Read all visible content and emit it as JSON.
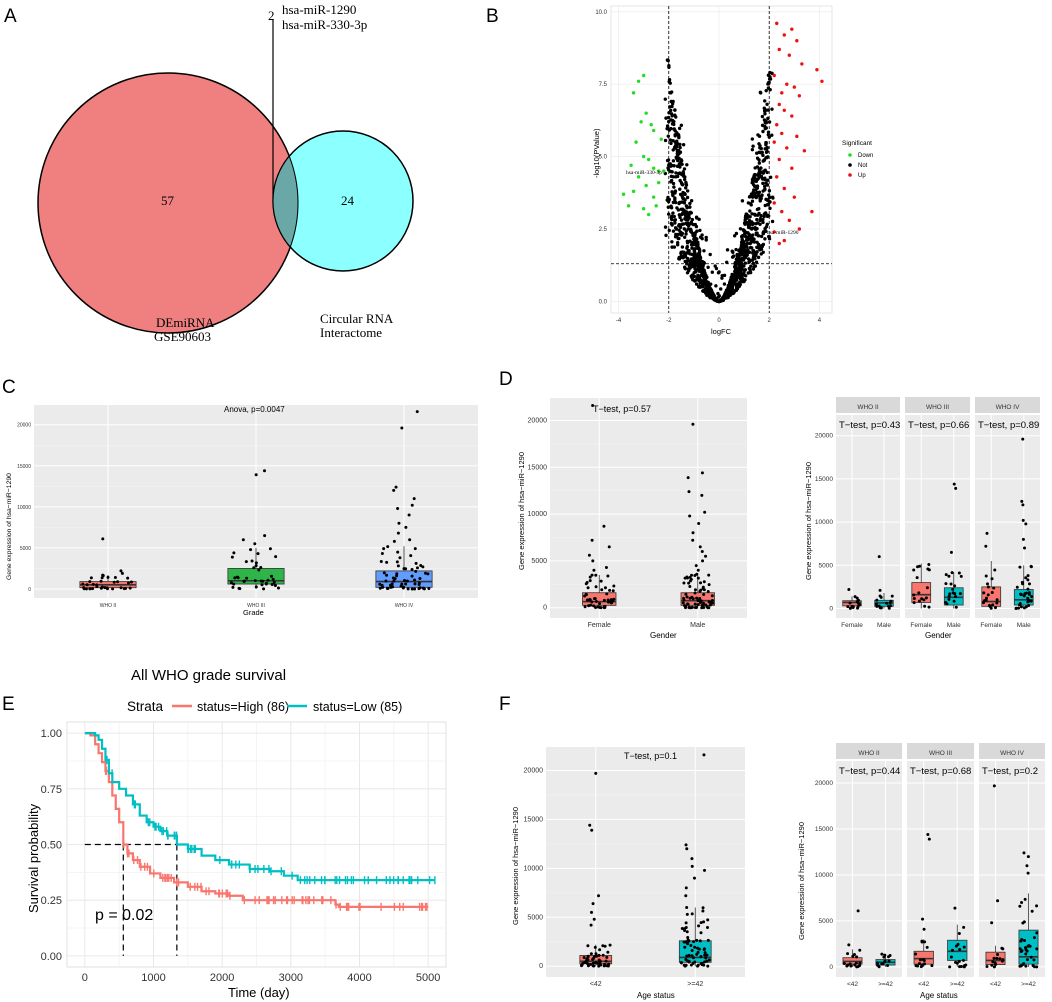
{
  "colors": {
    "venn_left": "#F08080",
    "venn_right": "#7FFFFF",
    "down": "#22DD22",
    "not": "#000000",
    "up": "#EE1111",
    "box_red": "#F8766D",
    "box_green": "#2FB44A",
    "box_blue": "#619CFF",
    "box_teal": "#00BFC4",
    "km_high": "#F8766D",
    "km_low": "#00BFC4",
    "panel_bg": "#EBEBEB",
    "strip_bg": "#D9D9D9"
  },
  "panel_labels": [
    "A",
    "B",
    "C",
    "D",
    "E",
    "F"
  ],
  "venn": {
    "left_count": "57",
    "right_count": "24",
    "overlap_count": "2",
    "overlap_genes": [
      "hsa-miR-1290",
      "hsa-miR-330-3p"
    ],
    "left_label": [
      "DEmiRNA",
      "GSE90603"
    ],
    "right_label": [
      "Circular RNA",
      "Interactome"
    ]
  },
  "chart_data": [
    {
      "id": "B",
      "type": "scatter",
      "xlabel": "logFC",
      "ylabel": "-log10(PValue)",
      "xlim": [
        -4.3,
        4.5
      ],
      "ylim": [
        -0.4,
        10.2
      ],
      "xticks": [
        -4,
        -2,
        0,
        2,
        4
      ],
      "yticks": [
        0.0,
        2.5,
        5.0,
        7.5,
        10.0
      ],
      "ytick_labels": [
        "0.0",
        "2.5",
        "5.0",
        "7.5",
        "10.0"
      ],
      "thresholds": {
        "logfc": [
          -2,
          2
        ],
        "pvalue": 1.3
      },
      "legend_title": "Significant",
      "legend": [
        "Down",
        "Not",
        "Up"
      ],
      "annotations": [
        {
          "text": "hsa-miR-330-3p",
          "x": -2.2,
          "y": 4.5
        },
        {
          "text": "hsa-miR-1290",
          "x": 2.5,
          "y": 2.5
        }
      ],
      "down_points": [
        [
          -3.2,
          7.6
        ],
        [
          -3.0,
          7.8
        ],
        [
          -3.4,
          7.2
        ],
        [
          -2.9,
          6.5
        ],
        [
          -3.1,
          6.2
        ],
        [
          -2.7,
          6.1
        ],
        [
          -2.6,
          5.9
        ],
        [
          -3.3,
          5.5
        ],
        [
          -2.3,
          5.6
        ],
        [
          -3.0,
          5.0
        ],
        [
          -2.8,
          4.9
        ],
        [
          -3.5,
          4.7
        ],
        [
          -2.6,
          4.6
        ],
        [
          -2.4,
          4.5
        ],
        [
          -2.2,
          4.5
        ],
        [
          -3.2,
          4.3
        ],
        [
          -2.9,
          4.0
        ],
        [
          -3.4,
          3.8
        ],
        [
          -2.6,
          3.6
        ],
        [
          -3.8,
          3.7
        ],
        [
          -2.5,
          3.3
        ],
        [
          -3.0,
          3.2
        ],
        [
          -2.8,
          3.0
        ],
        [
          -3.6,
          3.3
        ],
        [
          -2.4,
          4.1
        ]
      ],
      "up_points": [
        [
          2.3,
          9.6
        ],
        [
          2.6,
          9.2
        ],
        [
          2.9,
          9.4
        ],
        [
          3.1,
          9.0
        ],
        [
          2.4,
          8.7
        ],
        [
          2.8,
          8.5
        ],
        [
          3.3,
          8.2
        ],
        [
          3.9,
          8.0
        ],
        [
          4.1,
          7.6
        ],
        [
          2.2,
          7.8
        ],
        [
          2.5,
          7.2
        ],
        [
          2.7,
          7.5
        ],
        [
          3.0,
          7.4
        ],
        [
          3.2,
          7.1
        ],
        [
          2.4,
          6.8
        ],
        [
          2.6,
          6.6
        ],
        [
          2.9,
          6.4
        ],
        [
          2.3,
          6.1
        ],
        [
          2.5,
          5.8
        ],
        [
          3.1,
          5.7
        ],
        [
          2.2,
          5.5
        ],
        [
          2.7,
          5.3
        ],
        [
          3.4,
          5.2
        ],
        [
          2.4,
          4.9
        ],
        [
          2.9,
          4.6
        ],
        [
          2.3,
          4.3
        ],
        [
          2.6,
          3.9
        ],
        [
          3.0,
          3.6
        ],
        [
          2.2,
          3.4
        ],
        [
          2.5,
          3.1
        ],
        [
          3.7,
          3.1
        ],
        [
          2.8,
          2.8
        ],
        [
          2.2,
          2.4
        ],
        [
          3.2,
          2.5
        ],
        [
          2.6,
          2.1
        ],
        [
          2.4,
          2.0
        ]
      ]
    },
    {
      "id": "C",
      "type": "box",
      "title": "Anova, p=0.0047",
      "xlabel": "Grade",
      "ylabel": "Gene expression of hsa−miR−1290",
      "ylim": [
        -1100,
        22400
      ],
      "yticks": [
        0,
        5000,
        10000,
        15000,
        20000
      ],
      "categories": [
        "WHO II",
        "WHO III",
        "WHO IV"
      ],
      "boxes": [
        {
          "q1": 150,
          "median": 500,
          "q3": 900,
          "lower": 0,
          "upper": 1700,
          "color": "box_red",
          "n": 34,
          "outliers": [
            6100,
            2200,
            1900
          ]
        },
        {
          "q1": 600,
          "median": 1000,
          "q3": 2500,
          "lower": 0,
          "upper": 5000,
          "color": "box_green",
          "n": 40,
          "outliers": [
            14400,
            13900,
            6500,
            6000,
            5500
          ]
        },
        {
          "q1": 200,
          "median": 900,
          "q3": 2200,
          "lower": 0,
          "upper": 5200,
          "color": "box_blue",
          "n": 60,
          "outliers": [
            21600,
            19600,
            12400,
            12000,
            11000,
            10200,
            9800,
            9000,
            8000,
            7500,
            6800,
            6000,
            5800
          ]
        }
      ]
    },
    {
      "id": "D-left",
      "type": "box",
      "title": "T−test, p=0.57",
      "xlabel": "Gender",
      "ylabel": "Gene expression of hsa−miR−1290",
      "ylim": [
        -1100,
        22400
      ],
      "yticks": [
        0,
        5000,
        10000,
        15000,
        20000
      ],
      "categories": [
        "Female",
        "Male"
      ],
      "boxes": [
        {
          "q1": 250,
          "median": 650,
          "q3": 1600,
          "lower": 0,
          "upper": 3500,
          "color": "box_red",
          "n": 50,
          "outliers": [
            21600,
            8700,
            7200,
            6500,
            5600,
            5000,
            4300,
            4000
          ]
        },
        {
          "q1": 250,
          "median": 750,
          "q3": 1600,
          "lower": 0,
          "upper": 3700,
          "color": "box_red",
          "n": 70,
          "outliers": [
            19600,
            14400,
            13900,
            12400,
            12000,
            10200,
            9800,
            9000,
            8000,
            7200,
            6500,
            6000,
            5500,
            5000,
            4500,
            4000
          ]
        }
      ]
    },
    {
      "id": "D-right",
      "type": "box",
      "facets": [
        "WHO II",
        "WHO III",
        "WHO IV"
      ],
      "facet_titles": [
        "T−test, p=0.43",
        "T−test, p=0.66",
        "T−test, p=0.89"
      ],
      "xlabel": "Gender",
      "ylabel": "Gene expression of hsa−miR−1290",
      "ylim": [
        -1100,
        22400
      ],
      "yticks": [
        0,
        5000,
        10000,
        15000,
        20000
      ],
      "categories": [
        "Female",
        "Male"
      ],
      "boxes": [
        [
          {
            "q1": 300,
            "median": 700,
            "q3": 900,
            "lower": 0,
            "upper": 1400,
            "color": "box_red",
            "n": 14,
            "outliers": [
              2200
            ]
          },
          {
            "q1": 250,
            "median": 650,
            "q3": 950,
            "lower": 0,
            "upper": 1800,
            "color": "box_teal",
            "n": 16,
            "outliers": [
              6000,
              2100
            ]
          }
        ],
        [
          {
            "q1": 700,
            "median": 1600,
            "q3": 3000,
            "lower": 0,
            "upper": 5200,
            "color": "box_red",
            "n": 18,
            "outliers": []
          },
          {
            "q1": 400,
            "median": 1300,
            "q3": 2400,
            "lower": 0,
            "upper": 4200,
            "color": "box_teal",
            "n": 20,
            "outliers": [
              14400,
              13900,
              6500
            ]
          }
        ],
        [
          {
            "q1": 250,
            "median": 800,
            "q3": 2500,
            "lower": 0,
            "upper": 5500,
            "color": "box_red",
            "n": 20,
            "outliers": [
              8700,
              7200
            ]
          },
          {
            "q1": 400,
            "median": 1000,
            "q3": 2200,
            "lower": 0,
            "upper": 5000,
            "color": "box_teal",
            "n": 34,
            "outliers": [
              19600,
              12400,
              12000,
              10200,
              9800,
              8000,
              7000
            ]
          }
        ]
      ]
    },
    {
      "id": "E",
      "type": "line",
      "title": "All WHO grade survival",
      "legend_title": "Strata",
      "legend": [
        "status=High (86)",
        "status=Low (85)"
      ],
      "xlabel": "Time (day)",
      "ylabel": "Survival probability",
      "xlim": [
        -260,
        5260
      ],
      "ylim": [
        -0.05,
        1.05
      ],
      "xticks": [
        0,
        1000,
        2000,
        3000,
        4000,
        5000
      ],
      "yticks": [
        0.0,
        0.25,
        0.5,
        0.75,
        1.0
      ],
      "ytick_labels": [
        "0.00",
        "0.25",
        "0.50",
        "0.75",
        "1.00"
      ],
      "pvalue": "p = 0.02",
      "median_lines": [
        {
          "x": 560,
          "y": 0.5
        },
        {
          "x": 1340,
          "y": 0.5
        }
      ],
      "series": [
        {
          "name": "status=High (86)",
          "color": "km_high",
          "steps": [
            [
              0,
              1.0
            ],
            [
              80,
              0.99
            ],
            [
              150,
              0.95
            ],
            [
              200,
              0.91
            ],
            [
              250,
              0.87
            ],
            [
              300,
              0.83
            ],
            [
              350,
              0.78
            ],
            [
              400,
              0.72
            ],
            [
              450,
              0.66
            ],
            [
              500,
              0.6
            ],
            [
              560,
              0.5
            ],
            [
              620,
              0.46
            ],
            [
              700,
              0.43
            ],
            [
              800,
              0.4
            ],
            [
              950,
              0.37
            ],
            [
              1100,
              0.35
            ],
            [
              1300,
              0.33
            ],
            [
              1500,
              0.31
            ],
            [
              1700,
              0.29
            ],
            [
              1900,
              0.28
            ],
            [
              2100,
              0.27
            ],
            [
              2300,
              0.25
            ],
            [
              3650,
              0.23
            ],
            [
              3700,
              0.22
            ],
            [
              5000,
              0.22
            ]
          ]
        },
        {
          "name": "status=Low (85)",
          "color": "km_low",
          "steps": [
            [
              0,
              1.0
            ],
            [
              150,
              0.99
            ],
            [
              200,
              0.97
            ],
            [
              250,
              0.93
            ],
            [
              300,
              0.88
            ],
            [
              350,
              0.82
            ],
            [
              400,
              0.78
            ],
            [
              500,
              0.75
            ],
            [
              600,
              0.72
            ],
            [
              700,
              0.68
            ],
            [
              800,
              0.63
            ],
            [
              900,
              0.6
            ],
            [
              1000,
              0.58
            ],
            [
              1100,
              0.56
            ],
            [
              1200,
              0.54
            ],
            [
              1340,
              0.5
            ],
            [
              1500,
              0.48
            ],
            [
              1700,
              0.45
            ],
            [
              1900,
              0.43
            ],
            [
              2100,
              0.41
            ],
            [
              2400,
              0.39
            ],
            [
              2700,
              0.38
            ],
            [
              2900,
              0.36
            ],
            [
              3100,
              0.34
            ],
            [
              3600,
              0.34
            ],
            [
              5100,
              0.34
            ]
          ]
        }
      ]
    },
    {
      "id": "F-left",
      "type": "box",
      "title": "T−test, p=0.1",
      "xlabel": "Age status",
      "ylabel": "Gene expression of hsa−miR−1290",
      "ylim": [
        -1100,
        22400
      ],
      "yticks": [
        0,
        5000,
        10000,
        15000,
        20000
      ],
      "categories": [
        "<42",
        ">=42"
      ],
      "boxes": [
        {
          "q1": 250,
          "median": 500,
          "q3": 1100,
          "lower": 0,
          "upper": 2200,
          "color": "box_red",
          "n": 50,
          "outliers": [
            19700,
            14400,
            13900,
            7200,
            6400,
            5500,
            4800,
            4200
          ]
        },
        {
          "q1": 400,
          "median": 900,
          "q3": 2600,
          "lower": 0,
          "upper": 6000,
          "color": "box_teal",
          "n": 70,
          "outliers": [
            21600,
            12400,
            12000,
            11000,
            10200,
            9800,
            9000,
            8000,
            7200
          ]
        }
      ]
    },
    {
      "id": "F-right",
      "type": "box",
      "facets": [
        "WHO II",
        "WHO III",
        "WHO IV"
      ],
      "facet_titles": [
        "T−test, p=0.44",
        "T−test, p=0.68",
        "T−test, p=0.2"
      ],
      "xlabel": "Age status",
      "ylabel": "Gene expression of hsa−miR−1290",
      "ylim": [
        -1100,
        22400
      ],
      "yticks": [
        0,
        5000,
        10000,
        15000,
        20000
      ],
      "categories": [
        "<42",
        ">=42"
      ],
      "boxes": [
        [
          {
            "q1": 300,
            "median": 600,
            "q3": 1000,
            "lower": 0,
            "upper": 1900,
            "color": "box_red",
            "n": 16,
            "outliers": [
              6100,
              2400
            ]
          },
          {
            "q1": 200,
            "median": 500,
            "q3": 800,
            "lower": 0,
            "upper": 1400,
            "color": "box_teal",
            "n": 14,
            "outliers": []
          }
        ],
        [
          {
            "q1": 300,
            "median": 900,
            "q3": 1700,
            "lower": 0,
            "upper": 3000,
            "color": "box_red",
            "n": 16,
            "outliers": [
              14400,
              13900,
              5200,
              4100
            ]
          },
          {
            "q1": 700,
            "median": 1700,
            "q3": 2900,
            "lower": 0,
            "upper": 4600,
            "color": "box_teal",
            "n": 18,
            "outliers": [
              6400
            ]
          }
        ],
        [
          {
            "q1": 250,
            "median": 700,
            "q3": 1600,
            "lower": 0,
            "upper": 2300,
            "color": "box_red",
            "n": 14,
            "outliers": [
              19700,
              7200,
              4800
            ]
          },
          {
            "q1": 300,
            "median": 1100,
            "q3": 4000,
            "lower": 0,
            "upper": 8000,
            "color": "box_teal",
            "n": 34,
            "outliers": [
              12400,
              12000,
              11000,
              10200
            ]
          }
        ]
      ]
    }
  ]
}
